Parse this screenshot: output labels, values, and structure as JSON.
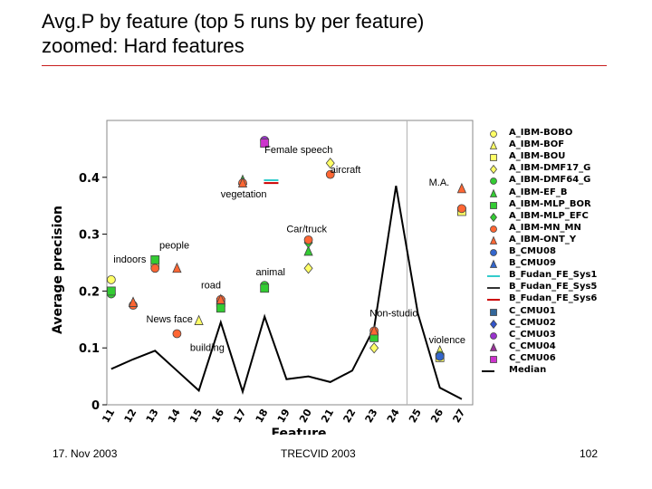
{
  "slide": {
    "title_line1": "Avg.P by feature (top 5 runs by per feature)",
    "title_line2": "zoomed: Hard features",
    "footer_date": "17. Nov 2003",
    "footer_event": "TRECVID 2003",
    "footer_page": "102",
    "accent_rule_color": "#c81e1e"
  },
  "chart_data": {
    "type": "scatter",
    "xlabel": "Feature",
    "ylabel": "Average precision",
    "categories": [
      "11",
      "12",
      "13",
      "14",
      "15",
      "16",
      "17",
      "18",
      "19",
      "20",
      "21",
      "22",
      "23",
      "24",
      "25",
      "26",
      "27"
    ],
    "ylim": [
      0,
      0.5
    ],
    "yticks": [
      0,
      0.1,
      0.2,
      0.3,
      0.4
    ],
    "ytick_labels": [
      "0",
      "0.1",
      "0.2",
      "0.3",
      "0.4"
    ],
    "grid": false,
    "legend_position": "right",
    "feature_labels": [
      {
        "text": "Female speech",
        "x": 18,
        "y": 0.443
      },
      {
        "text": "aircraft",
        "x": 21,
        "y": 0.408
      },
      {
        "text": "M.A.",
        "x": 25.5,
        "y": 0.385
      },
      {
        "text": "vegetation",
        "x": 16,
        "y": 0.365
      },
      {
        "text": "Car/truck",
        "x": 19,
        "y": 0.303
      },
      {
        "text": "people",
        "x": 13.2,
        "y": 0.275
      },
      {
        "text": "indoors",
        "x": 11.1,
        "y": 0.25
      },
      {
        "text": "animal",
        "x": 17.6,
        "y": 0.228
      },
      {
        "text": "road",
        "x": 15.1,
        "y": 0.205
      },
      {
        "text": "Non-studio",
        "x": 22.8,
        "y": 0.155
      },
      {
        "text": "News face",
        "x": 12.6,
        "y": 0.145
      },
      {
        "text": "violence",
        "x": 25.5,
        "y": 0.108
      },
      {
        "text": "building",
        "x": 14.6,
        "y": 0.095
      }
    ],
    "median": {
      "name": "Median",
      "x": [
        11,
        12,
        13,
        14,
        15,
        16,
        17,
        18,
        19,
        20,
        21,
        22,
        23,
        24,
        25,
        26,
        27
      ],
      "y": [
        0.063,
        0.08,
        0.095,
        0.06,
        0.025,
        0.145,
        0.023,
        0.155,
        0.045,
        0.05,
        0.04,
        0.06,
        0.135,
        0.385,
        0.16,
        0.03,
        0.01
      ]
    },
    "series": [
      {
        "name": "A_IBM-BOBO",
        "marker": "circle",
        "color": "#ffff66",
        "points": [
          [
            11,
            0.22
          ],
          [
            13,
            0.245
          ],
          [
            23,
            0.125
          ]
        ]
      },
      {
        "name": "A_IBM-BOF",
        "marker": "triangle",
        "color": "#ffff66",
        "points": [
          [
            15,
            0.148
          ],
          [
            26,
            0.095
          ]
        ]
      },
      {
        "name": "A_IBM-BOU",
        "marker": "square",
        "color": "#ffff66",
        "points": [
          [
            16,
            0.18
          ],
          [
            27,
            0.34
          ],
          [
            26,
            0.083
          ]
        ]
      },
      {
        "name": "A_IBM-DMF17_G",
        "marker": "diamond",
        "color": "#ffff66",
        "points": [
          [
            21,
            0.425
          ],
          [
            20,
            0.24
          ],
          [
            23,
            0.1
          ]
        ]
      },
      {
        "name": "A_IBM-DMF64_G",
        "marker": "circle",
        "color": "#33cc33",
        "points": [
          [
            11,
            0.195
          ],
          [
            18,
            0.21
          ],
          [
            26,
            0.087
          ]
        ]
      },
      {
        "name": "A_IBM-EF_B",
        "marker": "triangle",
        "color": "#33cc33",
        "points": [
          [
            17,
            0.395
          ],
          [
            12,
            0.18
          ],
          [
            20,
            0.27
          ]
        ]
      },
      {
        "name": "A_IBM-MLP_BOR",
        "marker": "square",
        "color": "#33cc33",
        "points": [
          [
            11,
            0.2
          ],
          [
            13,
            0.255
          ],
          [
            16,
            0.17
          ],
          [
            18,
            0.205
          ],
          [
            23,
            0.118
          ]
        ]
      },
      {
        "name": "A_IBM-MLP_EFC",
        "marker": "diamond",
        "color": "#33cc33",
        "points": [
          [
            20,
            0.285
          ]
        ]
      },
      {
        "name": "A_IBM-MN_MN",
        "marker": "circle",
        "color": "#ff6633",
        "points": [
          [
            21,
            0.405
          ],
          [
            12,
            0.175
          ],
          [
            14,
            0.125
          ],
          [
            13,
            0.24
          ],
          [
            20,
            0.29
          ],
          [
            16,
            0.185
          ],
          [
            17,
            0.39
          ],
          [
            27,
            0.345
          ],
          [
            23,
            0.13
          ]
        ]
      },
      {
        "name": "A_IBM-ONT_Y",
        "marker": "triangle",
        "color": "#ff6633",
        "points": [
          [
            14,
            0.24
          ],
          [
            16,
            0.185
          ],
          [
            17,
            0.39
          ],
          [
            23,
            0.13
          ],
          [
            27,
            0.38
          ],
          [
            12,
            0.18
          ]
        ]
      },
      {
        "name": "B_CMU08",
        "marker": "circle",
        "color": "#3366cc",
        "points": [
          [
            26,
            0.085
          ]
        ]
      },
      {
        "name": "B_CMU09",
        "marker": "triangle",
        "color": "#3366cc",
        "points": []
      },
      {
        "name": "B_Fudan_FE_Sys1",
        "marker": "dash",
        "color": "#33cccc",
        "points": [
          [
            18.3,
            0.395
          ]
        ]
      },
      {
        "name": "B_Fudan_FE_Sys5",
        "marker": "dash",
        "color": "#333333",
        "points": []
      },
      {
        "name": "B_Fudan_FE_Sys6",
        "marker": "dash",
        "color": "#cc0000",
        "points": [
          [
            18.3,
            0.39
          ]
        ]
      },
      {
        "name": "C_CMU01",
        "marker": "square",
        "color": "#336699",
        "points": []
      },
      {
        "name": "C_CMU02",
        "marker": "diamond",
        "color": "#3355cc",
        "points": []
      },
      {
        "name": "C_CMU03",
        "marker": "circle",
        "color": "#9933cc",
        "points": [
          [
            18,
            0.465
          ]
        ]
      },
      {
        "name": "C_CMU04",
        "marker": "triangle",
        "color": "#993399",
        "points": []
      },
      {
        "name": "C_CMU06",
        "marker": "square",
        "color": "#cc33cc",
        "points": [
          [
            18,
            0.46
          ]
        ]
      }
    ]
  }
}
